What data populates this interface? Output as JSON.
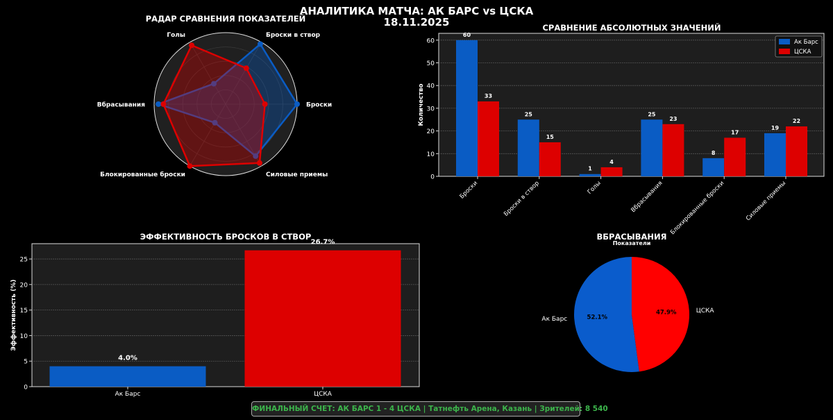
{
  "header": {
    "title": "АНАЛИТИКА МАТЧА: АК БАРС vs ЦСКА",
    "date": "18.11.2025"
  },
  "colors": {
    "team_a": "#0a5cc4",
    "team_b": "#dd0000",
    "team_a_pie": "#0a5ccc",
    "team_b_pie": "#ff0000",
    "panel_bg": "#1e1e1e",
    "footer_text": "#3cb44b"
  },
  "chart_data": [
    {
      "type": "radar",
      "title": "РАДАР СРАВНЕНИЯ ПОКАЗАТЕЛЕЙ",
      "axes": [
        "Броски",
        "Броски в створ",
        "Голы",
        "Вбрасывания",
        "Блокированные броски",
        "Силовые приемы"
      ],
      "series": [
        {
          "name": "Ак Барс",
          "values": [
            1.0,
            0.97,
            0.33,
            0.94,
            0.3,
            0.84
          ]
        },
        {
          "name": "ЦСКА",
          "values": [
            0.55,
            0.58,
            0.95,
            0.87,
            1.0,
            0.95
          ]
        }
      ],
      "rlim": [
        0,
        1
      ]
    },
    {
      "type": "bar",
      "title": "СРАВНЕНИЕ АБСОЛЮТНЫХ ЗНАЧЕНИЙ",
      "categories": [
        "Броски",
        "Броски в створ",
        "Голы",
        "Вбрасывания",
        "Блокированные броски",
        "Силовые приемы"
      ],
      "series": [
        {
          "name": "Ак Барс",
          "values": [
            60,
            25,
            1,
            25,
            8,
            19
          ]
        },
        {
          "name": "ЦСКА",
          "values": [
            33,
            15,
            4,
            23,
            17,
            22
          ]
        }
      ],
      "xlabel": "",
      "ylabel": "Количество",
      "ylim": [
        0,
        63
      ],
      "yticks": [
        0,
        10,
        20,
        30,
        40,
        50,
        60
      ],
      "legend": "top-right"
    },
    {
      "type": "bar",
      "title": "ЭФФЕКТИВНОСТЬ БРОСКОВ В СТВОР",
      "categories": [
        "Ак Барс",
        "ЦСКА"
      ],
      "values": [
        4.0,
        26.7
      ],
      "labels": [
        "4.0%",
        "26.7%"
      ],
      "ylabel": "Эффективность (%)",
      "ylim": [
        0,
        28
      ],
      "yticks": [
        0,
        5,
        10,
        15,
        20,
        25
      ]
    },
    {
      "type": "pie",
      "title": "ВБРАСЫВАНИЯ",
      "subtitle": "Показатели",
      "labels": [
        "Ак Барс",
        "ЦСКА"
      ],
      "values": [
        52.1,
        47.9
      ],
      "pct_labels": [
        "52.1%",
        "47.9%"
      ]
    }
  ],
  "footer": {
    "text": "ФИНАЛЬНЫЙ СЧЕТ: АК БАРС 1 - 4 ЦСКА | Татнефть Арена, Казань | Зрителей: 8 540"
  }
}
